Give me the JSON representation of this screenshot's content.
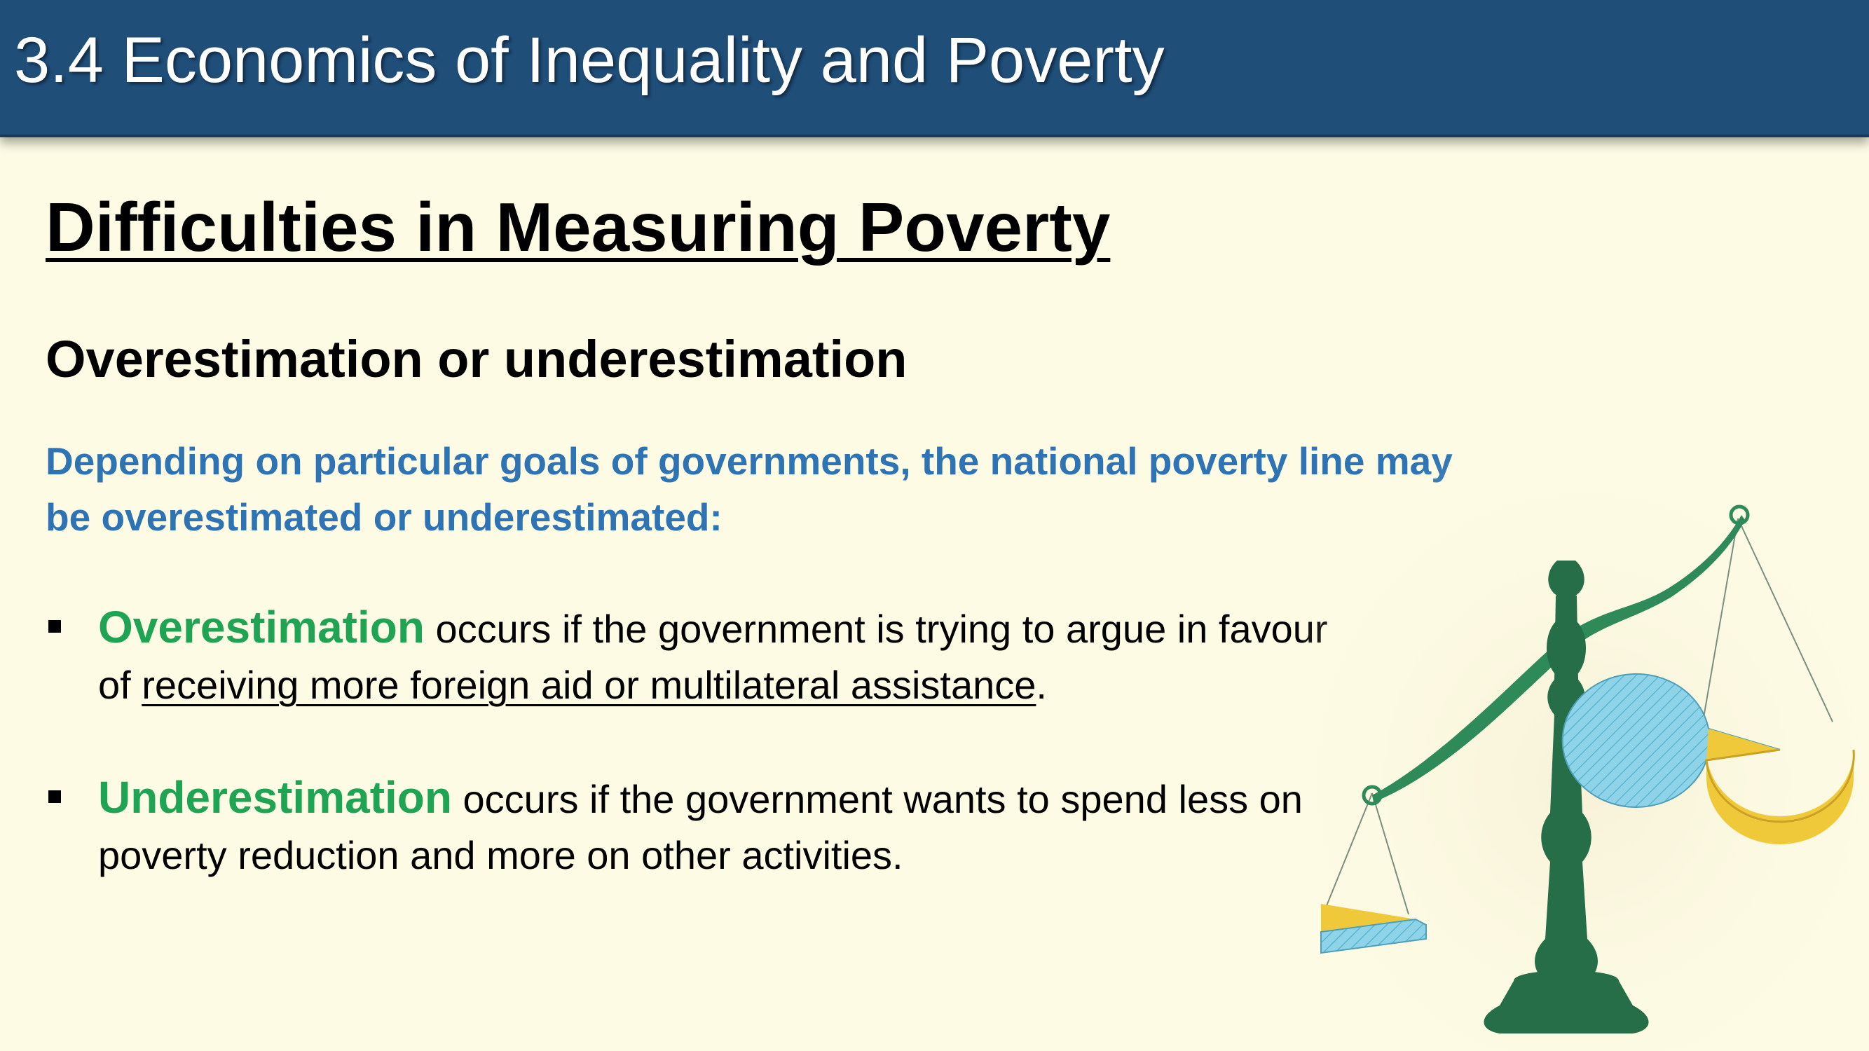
{
  "header": {
    "title": "3.4 Economics of Inequality and Poverty"
  },
  "slide": {
    "title": "Difficulties in Measuring Poverty",
    "subheading": "Overestimation or underestimation",
    "intro": "Depending on particular goals of governments, the national poverty line may be overestimated or underestimated:",
    "bullets": [
      {
        "keyword": "Overestimation",
        "text_before": " occurs if the government is trying to argue in favour of ",
        "underlined": "receiving more foreign aid or multilateral assistance",
        "text_after": "."
      },
      {
        "keyword": "Underestimation",
        "text_before": " occurs if the government wants to spend less on poverty reduction and more on other activities.",
        "underlined": "",
        "text_after": ""
      }
    ]
  },
  "illustration": {
    "icon": "balance-scale-icon",
    "colors": {
      "scale_green": "#2f8a5a",
      "pan_blue": "#8fd3e8",
      "pan_yellow": "#f0c93a"
    }
  },
  "theme": {
    "header_bg": "#1f4e79",
    "page_bg": "#fdfbe4",
    "intro_color": "#2e74b5",
    "keyword_color": "#1ea452"
  }
}
